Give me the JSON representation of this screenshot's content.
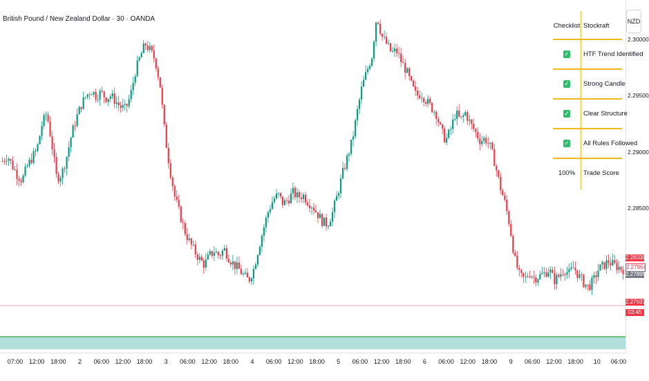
{
  "title": "British Pound / New Zealand Dollar · 30 · OANDA",
  "currency_badge": "NZD",
  "checklist": {
    "header_left": "Checklist",
    "header_right": "Stockraft",
    "rows": [
      {
        "check": "✓",
        "label": "HTF Trend Identified"
      },
      {
        "check": "✓",
        "label": "Strong Candle"
      },
      {
        "check": "✓",
        "label": "Clear Structure"
      },
      {
        "check": "✓",
        "label": "All Rules Followed"
      }
    ],
    "footer_left": "100%",
    "footer_right": "Trade Score"
  },
  "price_labels": [
    {
      "text": "2.28030",
      "color": "#f23645"
    },
    {
      "text": "2.27964",
      "color": "#ffffff"
    },
    {
      "text": "2.27895",
      "color": "#787b86"
    },
    {
      "text": "2.27637",
      "color": "#f23645"
    },
    {
      "text": "03:45",
      "color": "#f23645"
    }
  ],
  "colors": {
    "up": "#089981",
    "down": "#f23645",
    "hline": "#f5a3ab",
    "band": "#b2dfdb",
    "band_line": "#4caf50"
  },
  "chart_data": {
    "type": "candlestick",
    "y_ticks": [
      "2.30000",
      "2.29500",
      "2.29000",
      "2.28500"
    ],
    "ylim": [
      2.2725,
      2.3035
    ],
    "x_ticks": [
      "07:00",
      "12:00",
      "18:00",
      "2",
      "06:00",
      "12:00",
      "18:00",
      "3",
      "06:00",
      "12:00",
      "18:00",
      "4",
      "06:00",
      "12:00",
      "18:00",
      "5",
      "06:00",
      "12:00",
      "18:00",
      "6",
      "06:00",
      "12:00",
      "18:00",
      "9",
      "06:00",
      "12:00",
      "18:00",
      "10",
      "06:00"
    ],
    "horizontal_line": 2.27637,
    "close_path": [
      2.2892,
      2.2897,
      2.2888,
      2.288,
      2.2875,
      2.2887,
      2.2895,
      2.2902,
      2.2924,
      2.2935,
      2.2908,
      2.2877,
      2.288,
      2.2895,
      2.2915,
      2.293,
      2.2942,
      2.295,
      2.2955,
      2.295,
      2.2953,
      2.2948,
      2.295,
      2.2945,
      2.294,
      2.2938,
      2.295,
      2.2972,
      2.2985,
      2.2996,
      2.299,
      2.2982,
      2.296,
      2.2915,
      2.2885,
      2.286,
      2.2845,
      2.283,
      2.282,
      2.2812,
      2.2805,
      2.28,
      2.2808,
      2.2812,
      2.2808,
      2.2814,
      2.2806,
      2.28,
      2.2796,
      2.279,
      2.2786,
      2.2796,
      2.2815,
      2.2832,
      2.2848,
      2.2858,
      2.2862,
      2.2854,
      2.2858,
      2.2864,
      2.286,
      2.2862,
      2.2856,
      2.2852,
      2.2845,
      2.2838,
      2.2836,
      2.2846,
      2.2862,
      2.288,
      2.2895,
      2.291,
      2.2935,
      2.2958,
      2.2972,
      2.2985,
      2.3022,
      2.3003,
      2.2996,
      2.2988,
      2.299,
      2.298,
      2.2972,
      2.296,
      2.295,
      2.2952,
      2.2946,
      2.294,
      2.2935,
      2.292,
      2.291,
      2.292,
      2.2935,
      2.2928,
      2.2935,
      2.2925,
      2.2918,
      2.291,
      2.2912,
      2.2905,
      2.289,
      2.287,
      2.2855,
      2.2835,
      2.2805,
      2.279,
      2.2787,
      2.2793,
      2.2788,
      2.279,
      2.2792,
      2.2796,
      2.2786,
      2.279,
      2.2796,
      2.2792,
      2.2798,
      2.279,
      2.2784,
      2.278,
      2.2786,
      2.2796,
      2.2799,
      2.2803,
      2.28,
      2.2798,
      2.2796
    ]
  }
}
